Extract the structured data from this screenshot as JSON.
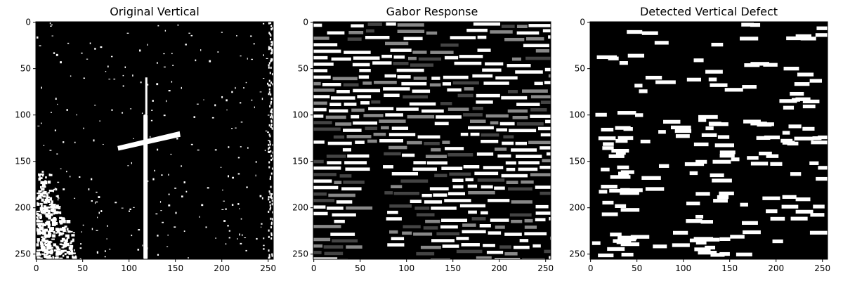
{
  "chart_data": [
    {
      "type": "image",
      "title": "Original Vertical",
      "xlim": [
        0,
        255
      ],
      "ylim": [
        255,
        0
      ],
      "x_ticks": [
        0,
        50,
        100,
        150,
        200,
        250
      ],
      "y_ticks": [
        0,
        50,
        100,
        150,
        200,
        250
      ],
      "colormap": "gray"
    },
    {
      "type": "image",
      "title": "Gabor Response",
      "xlim": [
        0,
        255
      ],
      "ylim": [
        255,
        0
      ],
      "x_ticks": [
        0,
        50,
        100,
        150,
        200,
        250
      ],
      "y_ticks": [
        0,
        50,
        100,
        150,
        200,
        250
      ],
      "colormap": "gray"
    },
    {
      "type": "image",
      "title": "Detected Vertical Defect",
      "xlim": [
        0,
        255
      ],
      "ylim": [
        255,
        0
      ],
      "x_ticks": [
        0,
        50,
        100,
        150,
        200,
        250
      ],
      "y_ticks": [
        0,
        50,
        100,
        150,
        200,
        250
      ],
      "colormap": "binary"
    }
  ]
}
